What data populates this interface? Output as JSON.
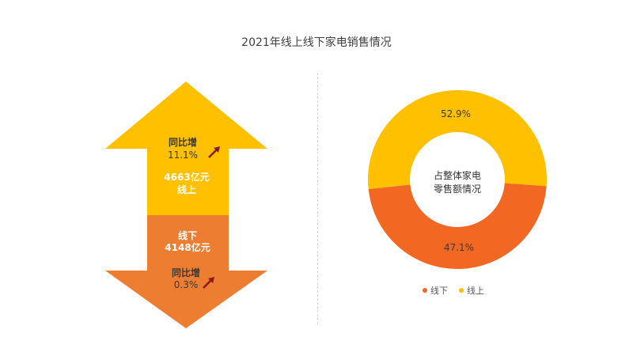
{
  "chart_data": [
    {
      "type": "bar",
      "title": "2021年线上线下家电销售情况",
      "series": [
        {
          "name": "线上",
          "value": 4663,
          "value_label": "4663亿元",
          "growth_label": "同比增",
          "growth_value": "11.1%",
          "color": "#FFC000"
        },
        {
          "name": "线下",
          "value": 4148,
          "value_label": "4148亿元",
          "growth_label": "同比增",
          "growth_value": "0.3%",
          "color": "#ED7D31"
        }
      ]
    },
    {
      "type": "pie",
      "center_label": [
        "占整体家电",
        "零售额情况"
      ],
      "slices": [
        {
          "name": "线上",
          "value": 52.9,
          "label": "52.9%",
          "color": "#FFC000"
        },
        {
          "name": "线下",
          "value": 47.1,
          "label": "47.1%",
          "color": "#F26722"
        }
      ],
      "legend": [
        {
          "name": "线下",
          "color": "#F26722"
        },
        {
          "name": "线上",
          "color": "#FFC000"
        }
      ],
      "legend_position": "bottom"
    }
  ],
  "colors": {
    "divider": "#d9d9d9",
    "tiny_arrow": "#8B1A1A"
  }
}
